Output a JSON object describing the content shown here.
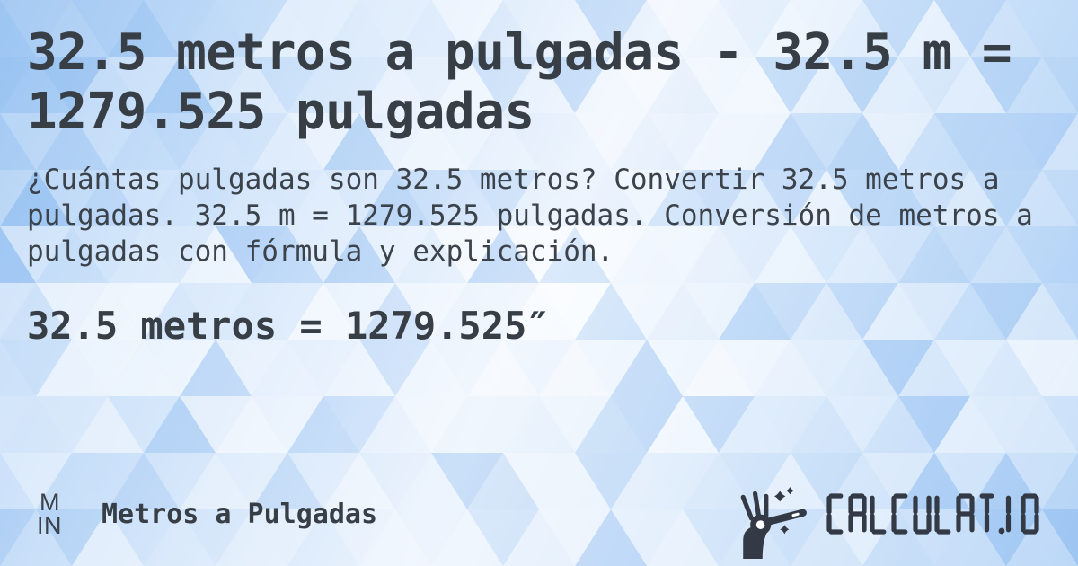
{
  "title": "32.5 metros a pulgadas - 32.5 m = 1279.525 pulgadas",
  "description": "¿Cuántas pulgadas son 32.5 metros? Convertir 32.5 metros a pulgadas. 32.5 m = 1279.525 pulgadas. Conversión de metros a pulgadas con fórmula y explicación.",
  "result_line": "32.5 metros = 1279.525″",
  "footer": {
    "unit_badge": {
      "top": "M",
      "bottom": "IN"
    },
    "category_label": "Metros a Pulgadas",
    "brand": {
      "name": "CALCULAT.IO",
      "icon": "magic-wand-icon"
    }
  },
  "colors": {
    "text": "#373e46",
    "brand_mark": "#333a45",
    "pattern_blue": "#86b6ee",
    "pattern_white": "#ffffff"
  }
}
